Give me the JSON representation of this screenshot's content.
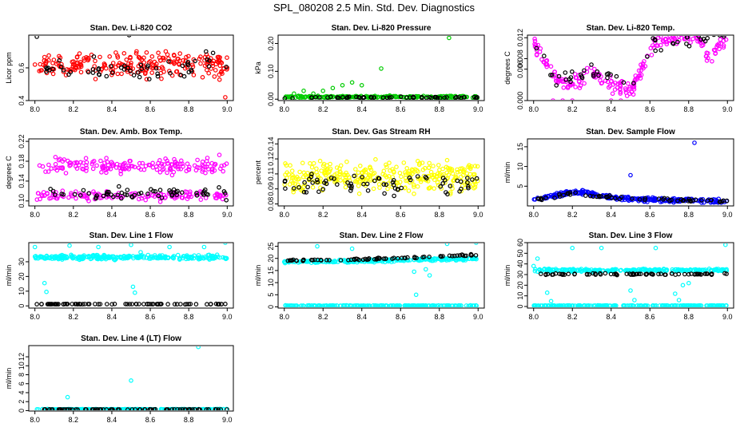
{
  "figure_title": "SPL_080208 2.5 Min. Std. Dev. Diagnostics",
  "colors": {
    "frame": "#000000",
    "overlay": "#000000"
  },
  "chart_data": [
    {
      "type": "scatter",
      "title": "Stan. Dev. Li-820 CO2",
      "ylabel": "Licor ppm",
      "xlim": [
        8.0,
        9.0
      ],
      "ylim": [
        0.4,
        0.8
      ],
      "x_ticks": [
        8.0,
        8.2,
        8.4,
        8.6,
        8.8,
        9.0
      ],
      "x_tick_labels": [
        "8.0",
        "8.2",
        "8.4",
        "8.6",
        "8.8",
        "9.0"
      ],
      "y_ticks": [
        0.4,
        0.6
      ],
      "y_tick_labels": [
        "0.4",
        "0.6"
      ],
      "series": [
        {
          "name": "main",
          "color": "#ff0000",
          "n": 230,
          "base": 0.62,
          "spread": 0.08,
          "points": [
            [
              8.0,
              0.62
            ],
            [
              8.23,
              0.61
            ],
            [
              8.5,
              0.63
            ],
            [
              8.75,
              0.62
            ],
            [
              9.0,
              0.6
            ],
            [
              8.99,
              0.42
            ]
          ]
        },
        {
          "name": "overlay",
          "color": "#000000",
          "n": 55,
          "base": 0.6,
          "spread": 0.08,
          "points": [
            [
              8.01,
              0.79
            ],
            [
              8.49,
              0.8
            ],
            [
              8.89,
              0.7
            ]
          ]
        }
      ]
    },
    {
      "type": "scatter",
      "title": "Stan. Dev. Li-820 Pressure",
      "ylabel": "kPa",
      "xlim": [
        8.0,
        9.0
      ],
      "ylim": [
        -0.005,
        0.23
      ],
      "x_ticks": [
        8.0,
        8.2,
        8.4,
        8.6,
        8.8,
        9.0
      ],
      "x_tick_labels": [
        "8.0",
        "8.2",
        "8.4",
        "8.6",
        "8.8",
        "9.0"
      ],
      "y_ticks": [
        0.0,
        0.1,
        0.2
      ],
      "y_tick_labels": [
        "0.00",
        "0.10",
        "0.20"
      ],
      "series": [
        {
          "name": "main",
          "color": "#00cc00",
          "n": 200,
          "base": 0.008,
          "spread": 0.004,
          "points": [
            [
              8.05,
              0.02
            ],
            [
              8.1,
              0.03
            ],
            [
              8.15,
              0.02
            ],
            [
              8.2,
              0.03
            ],
            [
              8.25,
              0.04
            ],
            [
              8.3,
              0.05
            ],
            [
              8.35,
              0.06
            ],
            [
              8.4,
              0.05
            ],
            [
              8.5,
              0.11
            ],
            [
              8.85,
              0.22
            ]
          ]
        },
        {
          "name": "overlay",
          "color": "#000000",
          "n": 60,
          "base": 0.006,
          "spread": 0.003,
          "points": []
        }
      ]
    },
    {
      "type": "scatter",
      "title": "Stan. Dev. Li-820 Temp.",
      "ylabel": "degrees C",
      "xlim": [
        8.0,
        9.0
      ],
      "ylim": [
        0.0,
        0.0125
      ],
      "x_ticks": [
        8.0,
        8.2,
        8.4,
        8.6,
        8.8,
        9.0
      ],
      "x_tick_labels": [
        "8.0",
        "8.2",
        "8.4",
        "8.6",
        "8.8",
        "9.0"
      ],
      "y_ticks": [
        0.0,
        0.006,
        0.008,
        0.012
      ],
      "y_tick_labels": [
        "0.000",
        "0.006",
        "0.008",
        "0.012"
      ],
      "series": [
        {
          "name": "main",
          "color": "#ff00ff",
          "n": 220,
          "base": 0.005,
          "spread": 0.0015,
          "trend": [
            [
              8.0,
              0.011
            ],
            [
              8.05,
              0.008
            ],
            [
              8.12,
              0.004
            ],
            [
              8.2,
              0.003
            ],
            [
              8.3,
              0.006
            ],
            [
              8.38,
              0.003
            ],
            [
              8.5,
              0.002
            ],
            [
              8.56,
              0.006
            ],
            [
              8.62,
              0.011
            ],
            [
              8.75,
              0.012
            ],
            [
              8.85,
              0.012
            ],
            [
              8.9,
              0.008
            ],
            [
              9.0,
              0.012
            ]
          ],
          "points": [
            [
              8.1,
              0.0
            ],
            [
              8.15,
              0.0
            ],
            [
              8.2,
              0.0
            ],
            [
              8.4,
              0.0
            ],
            [
              8.45,
              0.0
            ]
          ]
        },
        {
          "name": "overlay",
          "color": "#000000",
          "n": 50,
          "base": 0.005,
          "spread": 0.0015,
          "trend": [
            [
              8.0,
              0.011
            ],
            [
              8.12,
              0.004
            ],
            [
              8.3,
              0.006
            ],
            [
              8.5,
              0.002
            ],
            [
              8.62,
              0.011
            ],
            [
              9.0,
              0.012
            ]
          ],
          "points": []
        }
      ]
    },
    {
      "type": "scatter",
      "title": "Stan. Dev. Amb. Box Temp.",
      "ylabel": "degrees C",
      "xlim": [
        8.0,
        9.0
      ],
      "ylim": [
        0.09,
        0.225
      ],
      "x_ticks": [
        8.0,
        8.2,
        8.4,
        8.6,
        8.8,
        9.0
      ],
      "x_tick_labels": [
        "8.0",
        "8.2",
        "8.4",
        "8.6",
        "8.8",
        "9.0"
      ],
      "y_ticks": [
        0.1,
        0.14,
        0.18,
        0.22
      ],
      "y_tick_labels": [
        "0.10",
        "0.14",
        "0.18",
        "0.22"
      ],
      "series": [
        {
          "name": "upper",
          "color": "#ff00ff",
          "n": 170,
          "base": 0.17,
          "spread": 0.018,
          "points": []
        },
        {
          "name": "lower",
          "color": "#ff00ff",
          "n": 130,
          "base": 0.11,
          "spread": 0.01,
          "points": []
        },
        {
          "name": "overlay",
          "color": "#000000",
          "n": 60,
          "base": 0.115,
          "spread": 0.012,
          "points": []
        }
      ]
    },
    {
      "type": "scatter",
      "title": "Stan. Dev. Gas Stream RH",
      "ylabel": "percent",
      "xlim": [
        8.0,
        9.0
      ],
      "ylim": [
        0.078,
        0.145
      ],
      "x_ticks": [
        8.0,
        8.2,
        8.4,
        8.6,
        8.8,
        9.0
      ],
      "x_tick_labels": [
        "8.0",
        "8.2",
        "8.4",
        "8.6",
        "8.8",
        "9.0"
      ],
      "y_ticks": [
        0.08,
        0.095,
        0.11,
        0.125,
        0.14
      ],
      "y_tick_labels": [
        "0.08",
        "0.09",
        "0.11",
        "0.12",
        "0.14"
      ],
      "series": [
        {
          "name": "main",
          "color": "#ffff00",
          "n": 320,
          "base": 0.108,
          "spread": 0.016,
          "points": []
        },
        {
          "name": "overlay",
          "color": "#000000",
          "n": 70,
          "base": 0.1,
          "spread": 0.012,
          "points": []
        }
      ]
    },
    {
      "type": "scatter",
      "title": "Stan. Dev. Sample Flow",
      "ylabel": "ml/min",
      "xlim": [
        8.0,
        9.0
      ],
      "ylim": [
        0.0,
        17.0
      ],
      "x_ticks": [
        8.0,
        8.2,
        8.4,
        8.6,
        8.8,
        9.0
      ],
      "x_tick_labels": [
        "8.0",
        "8.2",
        "8.4",
        "8.6",
        "8.8",
        "9.0"
      ],
      "y_ticks": [
        5,
        10,
        15
      ],
      "y_tick_labels": [
        "5",
        "10",
        "15"
      ],
      "series": [
        {
          "name": "main",
          "color": "#0000ff",
          "n": 260,
          "base": 1.5,
          "spread": 0.6,
          "trend": [
            [
              8.0,
              1.5
            ],
            [
              8.1,
              2.5
            ],
            [
              8.2,
              3.5
            ],
            [
              8.27,
              3.4
            ],
            [
              8.35,
              2.5
            ],
            [
              8.45,
              2.0
            ],
            [
              8.6,
              1.6
            ],
            [
              8.8,
              1.4
            ],
            [
              9.0,
              1.3
            ]
          ],
          "points": [
            [
              8.5,
              7.8
            ],
            [
              8.83,
              16.0
            ]
          ]
        },
        {
          "name": "overlay",
          "color": "#000000",
          "n": 60,
          "base": 1.5,
          "spread": 0.4,
          "trend": [
            [
              8.0,
              1.5
            ],
            [
              8.2,
              3.2
            ],
            [
              8.35,
              2.3
            ],
            [
              8.6,
              1.6
            ],
            [
              9.0,
              1.3
            ]
          ],
          "points": []
        }
      ]
    },
    {
      "type": "scatter",
      "title": "Stan. Dev. Line 1 Flow",
      "ylabel": "ml/min",
      "xlim": [
        8.0,
        9.0
      ],
      "ylim": [
        -1.5,
        43.0
      ],
      "x_ticks": [
        8.0,
        8.2,
        8.4,
        8.6,
        8.8,
        9.0
      ],
      "x_tick_labels": [
        "8.0",
        "8.2",
        "8.4",
        "8.6",
        "8.8",
        "9.0"
      ],
      "y_ticks": [
        0,
        10,
        20,
        30
      ],
      "y_tick_labels": [
        "0",
        "10",
        "20",
        "30"
      ],
      "series": [
        {
          "name": "upper",
          "color": "#00ffff",
          "n": 260,
          "base": 33.0,
          "spread": 1.8,
          "points": [
            [
              8.0,
              40.0
            ],
            [
              8.05,
              15.5
            ],
            [
              8.06,
              9.5
            ],
            [
              8.18,
              41.0
            ],
            [
              8.33,
              40.0
            ],
            [
              8.5,
              41.5
            ],
            [
              8.51,
              13.0
            ],
            [
              8.52,
              9.0
            ],
            [
              8.55,
              36.5
            ],
            [
              8.7,
              40.0
            ],
            [
              8.88,
              40.0
            ],
            [
              8.99,
              43.0
            ]
          ]
        },
        {
          "name": "overlay",
          "color": "#000000",
          "n": 80,
          "base": 1.2,
          "spread": 0.15,
          "points": []
        }
      ]
    },
    {
      "type": "scatter",
      "title": "Stan. Dev. Line 2 Flow",
      "ylabel": "ml/min",
      "xlim": [
        8.0,
        9.0
      ],
      "ylim": [
        -0.5,
        26.5
      ],
      "x_ticks": [
        8.0,
        8.2,
        8.4,
        8.6,
        8.8,
        9.0
      ],
      "x_tick_labels": [
        "8.0",
        "8.2",
        "8.4",
        "8.6",
        "8.8",
        "9.0"
      ],
      "y_ticks": [
        0,
        5,
        10,
        15,
        20,
        25
      ],
      "y_tick_labels": [
        "0",
        "5",
        "10",
        "15",
        "20",
        "25"
      ],
      "series": [
        {
          "name": "upper",
          "color": "#00ffff",
          "n": 230,
          "base": 19.0,
          "spread": 0.6,
          "trend": [
            [
              8.0,
              18.5
            ],
            [
              8.5,
              19.0
            ],
            [
              9.0,
              20.0
            ]
          ],
          "points": [
            [
              8.17,
              25.0
            ],
            [
              8.35,
              24.0
            ],
            [
              8.67,
              14.5
            ],
            [
              8.68,
              5.0
            ],
            [
              8.73,
              15.5
            ],
            [
              8.75,
              13.0
            ],
            [
              8.84,
              26.0
            ],
            [
              8.99,
              26.5
            ]
          ]
        },
        {
          "name": "lower",
          "color": "#00ffff",
          "n": 200,
          "base": 0.5,
          "spread": 0.1,
          "points": []
        },
        {
          "name": "overlay",
          "color": "#000000",
          "n": 70,
          "base": 19.5,
          "spread": 0.4,
          "trend": [
            [
              8.0,
              19.0
            ],
            [
              8.5,
              19.8
            ],
            [
              9.0,
              21.5
            ]
          ],
          "points": []
        }
      ]
    },
    {
      "type": "scatter",
      "title": "Stan. Dev. Line 3 Flow",
      "ylabel": "ml/min",
      "xlim": [
        8.0,
        9.0
      ],
      "ylim": [
        -1.5,
        60.0
      ],
      "x_ticks": [
        8.0,
        8.2,
        8.4,
        8.6,
        8.8,
        9.0
      ],
      "x_tick_labels": [
        "8.0",
        "8.2",
        "8.4",
        "8.6",
        "8.8",
        "9.0"
      ],
      "y_ticks": [
        0,
        10,
        20,
        30,
        40,
        50,
        60
      ],
      "y_tick_labels": [
        "0",
        "10",
        "20",
        "30",
        "40",
        "50",
        "60"
      ],
      "series": [
        {
          "name": "upper",
          "color": "#00ffff",
          "n": 230,
          "base": 34.0,
          "spread": 1.6,
          "points": [
            [
              8.0,
              38.0
            ],
            [
              8.02,
              45.0
            ],
            [
              8.07,
              13.0
            ],
            [
              8.09,
              5.0
            ],
            [
              8.2,
              55.0
            ],
            [
              8.35,
              55.0
            ],
            [
              8.5,
              15.0
            ],
            [
              8.52,
              6.0
            ],
            [
              8.63,
              55.0
            ],
            [
              8.73,
              12.0
            ],
            [
              8.75,
              6.0
            ],
            [
              8.77,
              20.0
            ],
            [
              8.8,
              22.0
            ],
            [
              8.99,
              58.0
            ]
          ]
        },
        {
          "name": "lower",
          "color": "#00ffff",
          "n": 200,
          "base": 0.8,
          "spread": 0.2,
          "points": []
        },
        {
          "name": "overlay",
          "color": "#000000",
          "n": 75,
          "base": 30.5,
          "spread": 0.8,
          "points": []
        }
      ]
    },
    {
      "type": "scatter",
      "title": "Stan. Dev. Line 4 (LT) Flow",
      "ylabel": "ml/min",
      "xlim": [
        8.0,
        9.0
      ],
      "ylim": [
        -0.1,
        14.5
      ],
      "x_ticks": [
        8.0,
        8.2,
        8.4,
        8.6,
        8.8,
        9.0
      ],
      "x_tick_labels": [
        "8.0",
        "8.2",
        "8.4",
        "8.6",
        "8.8",
        "9.0"
      ],
      "y_ticks": [
        0,
        2,
        4,
        6,
        8,
        10,
        12
      ],
      "y_tick_labels": [
        "0",
        "2",
        "4",
        "6",
        "8",
        "10",
        "12"
      ],
      "series": [
        {
          "name": "main",
          "color": "#00ffff",
          "n": 220,
          "base": 0.3,
          "spread": 0.05,
          "points": [
            [
              8.17,
              3.0
            ],
            [
              8.5,
              6.7
            ],
            [
              8.85,
              14.2
            ]
          ]
        },
        {
          "name": "overlay",
          "color": "#000000",
          "n": 80,
          "base": 0.25,
          "spread": 0.04,
          "points": []
        }
      ]
    }
  ]
}
